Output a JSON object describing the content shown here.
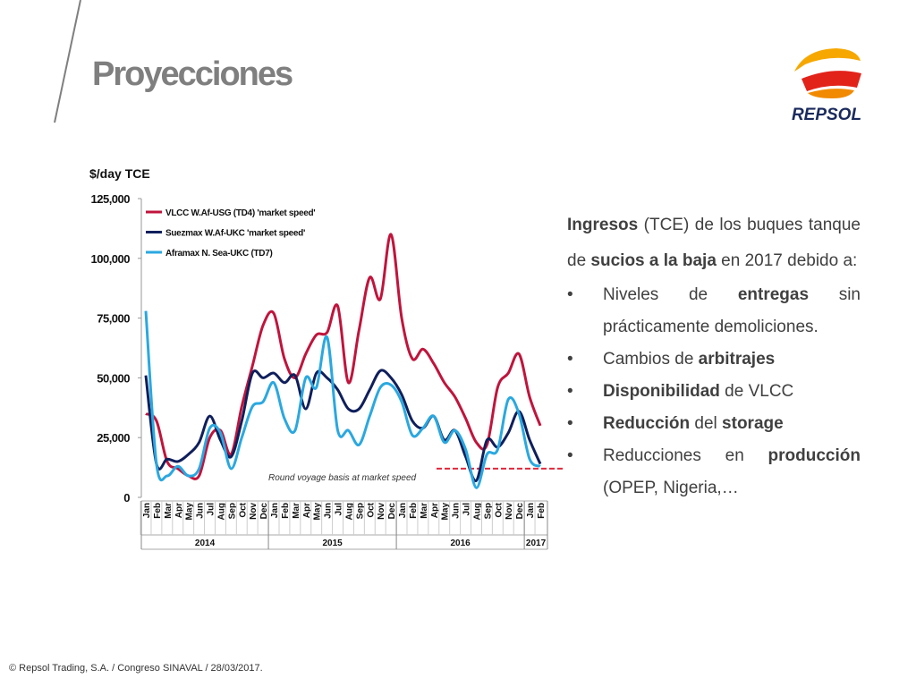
{
  "title": "Proyecciones",
  "logo": {
    "text": "REPSOL"
  },
  "footer": "© Repsol Trading, S.A. /  Congreso SINAVAL / 28/03/2017.",
  "text_panel": {
    "intro": [
      {
        "text": "Ingresos",
        "bold": true
      },
      {
        "text": " (TCE) de los buques tanque de "
      },
      {
        "text": "sucios a la baja",
        "bold": true
      },
      {
        "text": " en 2017 debido a:"
      }
    ],
    "bullets": [
      [
        {
          "text": "Niveles de "
        },
        {
          "text": "entregas",
          "bold": true
        },
        {
          "text": " sin prácticamente demoliciones."
        }
      ],
      [
        {
          "text": "Cambios de "
        },
        {
          "text": "arbitrajes",
          "bold": true
        }
      ],
      [
        {
          "text": "Disponibilidad",
          "bold": true
        },
        {
          "text": " de VLCC"
        }
      ],
      [
        {
          "text": "Reducción",
          "bold": true
        },
        {
          "text": " del "
        },
        {
          "text": "storage",
          "bold": true
        }
      ],
      [
        {
          "text": "Reducciones en "
        },
        {
          "text": "producción",
          "bold": true
        },
        {
          "text": " (OPEP, Nigeria,…"
        }
      ]
    ]
  },
  "chart_data": {
    "type": "line",
    "y_label": "$/day TCE",
    "annotation": "Round voyage basis at market speed",
    "categories": [
      "Jan",
      "Feb",
      "Mar",
      "Apr",
      "May",
      "Jun",
      "Jul",
      "Aug",
      "Sep",
      "Oct",
      "Nov",
      "Dec",
      "Jan",
      "Feb",
      "Mar",
      "Apr",
      "May",
      "Jun",
      "Jul",
      "Aug",
      "Sep",
      "Oct",
      "Nov",
      "Dec",
      "Jan",
      "Feb",
      "Mar",
      "Apr",
      "May",
      "Jun",
      "Jul",
      "Aug",
      "Sep",
      "Oct",
      "Nov",
      "Dec",
      "Jan",
      "Feb"
    ],
    "years": [
      "2014",
      "2015",
      "2016",
      "2017"
    ],
    "ylim": [
      0,
      125000
    ],
    "yticks": [
      0,
      {
        "value": 25000,
        "label": "25,000"
      },
      {
        "value": 50000,
        "label": "50,000"
      },
      {
        "value": 75000,
        "label": "75,000"
      },
      {
        "value": 100000,
        "label": "100,000"
      },
      {
        "value": 125000,
        "label": "125,000"
      }
    ],
    "grid": false,
    "legend": "top-left",
    "reference_line": {
      "value": 12000,
      "color": "#e0283c"
    },
    "series": [
      {
        "name": "VLCC W.Af-USG (TD4) 'market speed'",
        "color": "#c0143c",
        "values": [
          35000,
          32000,
          15000,
          12000,
          9000,
          9000,
          25000,
          28000,
          18000,
          38000,
          55000,
          72000,
          77000,
          58000,
          50000,
          60000,
          68000,
          69000,
          80000,
          48000,
          70000,
          92000,
          83000,
          110000,
          75000,
          58000,
          62000,
          56000,
          48000,
          42000,
          33000,
          23000,
          22000,
          46000,
          52000,
          60000,
          42000,
          30000
        ]
      },
      {
        "name": "Suezmax W.Af-UKC 'market speed'",
        "color": "#0f1f5c",
        "values": [
          51000,
          14000,
          16000,
          15000,
          18000,
          23000,
          34000,
          24000,
          17000,
          32000,
          52000,
          50000,
          52000,
          48000,
          51000,
          37000,
          52000,
          50000,
          45000,
          37000,
          37000,
          45000,
          53000,
          50000,
          43000,
          32000,
          29000,
          34000,
          24000,
          28000,
          17000,
          7000,
          24000,
          21000,
          27000,
          36000,
          24000,
          14000
        ]
      },
      {
        "name": "Aframax N. Sea-UKC (TD7)",
        "color": "#2aa8e0",
        "values": [
          78000,
          14000,
          9000,
          13000,
          9000,
          12000,
          29000,
          27000,
          12000,
          25000,
          38000,
          40000,
          48000,
          33000,
          28000,
          50000,
          46000,
          67000,
          28000,
          28000,
          22000,
          34000,
          46000,
          47000,
          40000,
          26000,
          29000,
          34000,
          23000,
          28000,
          20000,
          4000,
          18000,
          20000,
          41000,
          35000,
          16000,
          13000
        ]
      }
    ]
  }
}
